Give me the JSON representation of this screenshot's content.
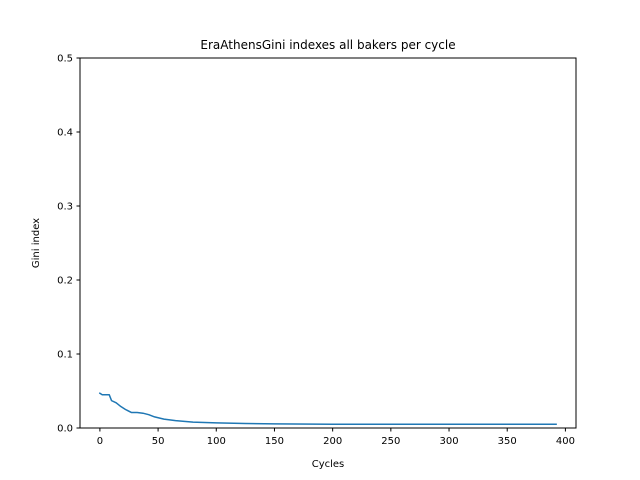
{
  "chart_data": {
    "type": "line",
    "title": "EraAthensGini indexes all bakers per cycle",
    "xlabel": "Cycles",
    "ylabel": "Gini index",
    "xlim": [
      -17.1,
      409.1
    ],
    "ylim": [
      0,
      0.5
    ],
    "grid": false,
    "legend": "none",
    "xticks": [
      0,
      50,
      100,
      150,
      200,
      250,
      300,
      350,
      400
    ],
    "yticks": [
      0.0,
      0.1,
      0.2,
      0.3,
      0.4,
      0.5
    ],
    "xtick_labels": [
      "0",
      "50",
      "100",
      "150",
      "200",
      "250",
      "300",
      "350",
      "400"
    ],
    "ytick_labels": [
      "0.0",
      "0.1",
      "0.2",
      "0.3",
      "0.4",
      "0.5"
    ],
    "series": [
      {
        "color": "#1f77b4",
        "x": [
          0,
          2,
          8,
          10,
          14,
          18,
          22,
          27,
          32,
          37,
          42,
          47,
          55,
          65,
          80,
          100,
          125,
          150,
          200,
          250,
          300,
          350,
          392
        ],
        "y": [
          0.047,
          0.045,
          0.045,
          0.037,
          0.034,
          0.029,
          0.025,
          0.021,
          0.021,
          0.02,
          0.018,
          0.015,
          0.012,
          0.01,
          0.008,
          0.007,
          0.006,
          0.0055,
          0.005,
          0.005,
          0.005,
          0.005,
          0.005
        ]
      }
    ]
  }
}
